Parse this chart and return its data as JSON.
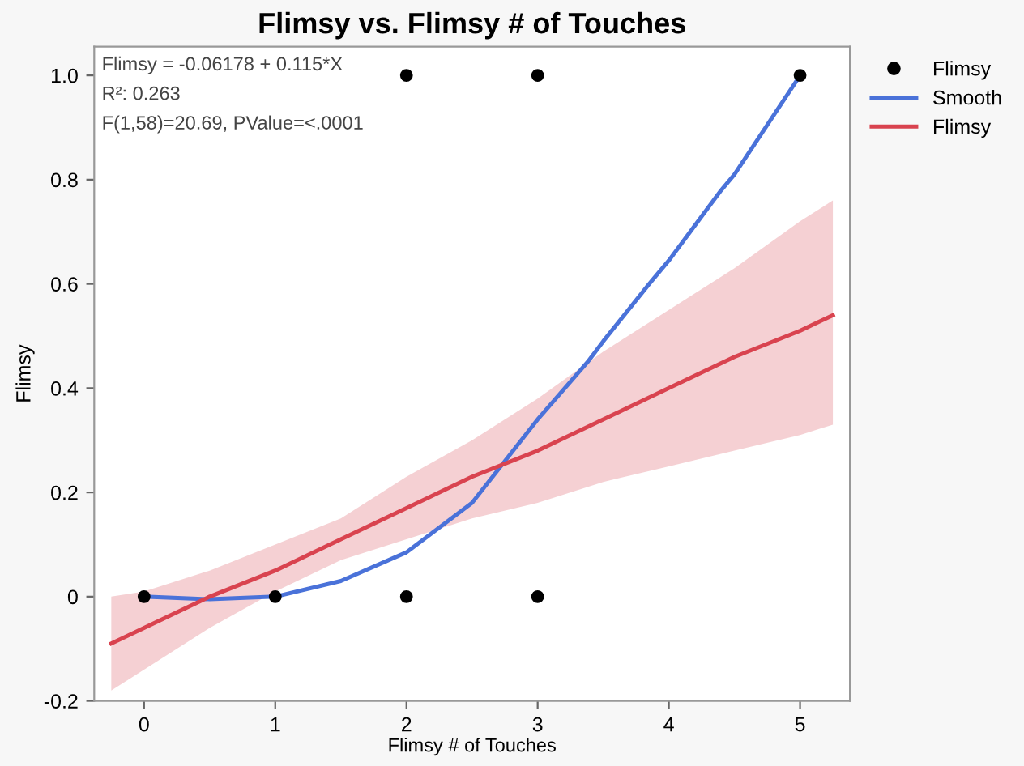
{
  "chart_data": {
    "type": "line",
    "title": "Flimsy vs. Flimsy # of Touches",
    "xlabel": "Flimsy # of Touches",
    "ylabel": "Flimsy",
    "annotations": [
      "Flimsy = -0.06178 + 0.115*X",
      "R²: 0.263",
      "F(1,58)=20.69, PValue=<.0001"
    ],
    "series": [
      {
        "name": "Flimsy",
        "type": "scatter",
        "marker": "circle",
        "color": "#000000",
        "x": [
          0,
          1,
          2,
          3,
          2,
          3,
          5
        ],
        "values": [
          0,
          0,
          0,
          0,
          1,
          1,
          1
        ]
      },
      {
        "name": "Smooth",
        "color": "#4a72d9",
        "x": [
          0,
          0.5,
          1,
          1.5,
          2,
          2.5,
          2.75,
          3,
          3.38,
          3.5,
          3.85,
          4,
          4.39,
          4.5,
          5
        ],
        "values": [
          0,
          -0.005,
          0,
          0.03,
          0.085,
          0.18,
          0.26,
          0.34,
          0.45,
          0.49,
          0.6,
          0.645,
          0.777,
          0.81,
          1.0
        ]
      },
      {
        "name": "Flimsy",
        "color": "#d9434f",
        "x": [
          -0.25,
          0,
          0.5,
          1,
          1.5,
          2,
          2.5,
          3,
          3.5,
          4,
          4.5,
          5,
          5.25
        ],
        "values": [
          -0.09,
          -0.06,
          0,
          0.05,
          0.11,
          0.17,
          0.23,
          0.28,
          0.34,
          0.4,
          0.46,
          0.51,
          0.54
        ],
        "lower": [
          -0.18,
          -0.14,
          -0.06,
          0.01,
          0.07,
          0.11,
          0.15,
          0.18,
          0.22,
          0.25,
          0.28,
          0.31,
          0.33
        ],
        "upper": [
          0,
          0.01,
          0.05,
          0.1,
          0.15,
          0.23,
          0.3,
          0.38,
          0.47,
          0.55,
          0.63,
          0.72,
          0.76
        ]
      }
    ],
    "xlim": [
      -0.38,
      5.38
    ],
    "ylim": [
      -0.2,
      1.055
    ],
    "xticks": [
      0,
      1,
      2,
      3,
      4,
      5
    ],
    "yticks": [
      -0.2,
      0,
      0.2,
      0.4,
      0.6,
      0.8,
      {
        "value": 1.0,
        "label": "1.0"
      }
    ],
    "legend": "top right",
    "grid": false
  }
}
